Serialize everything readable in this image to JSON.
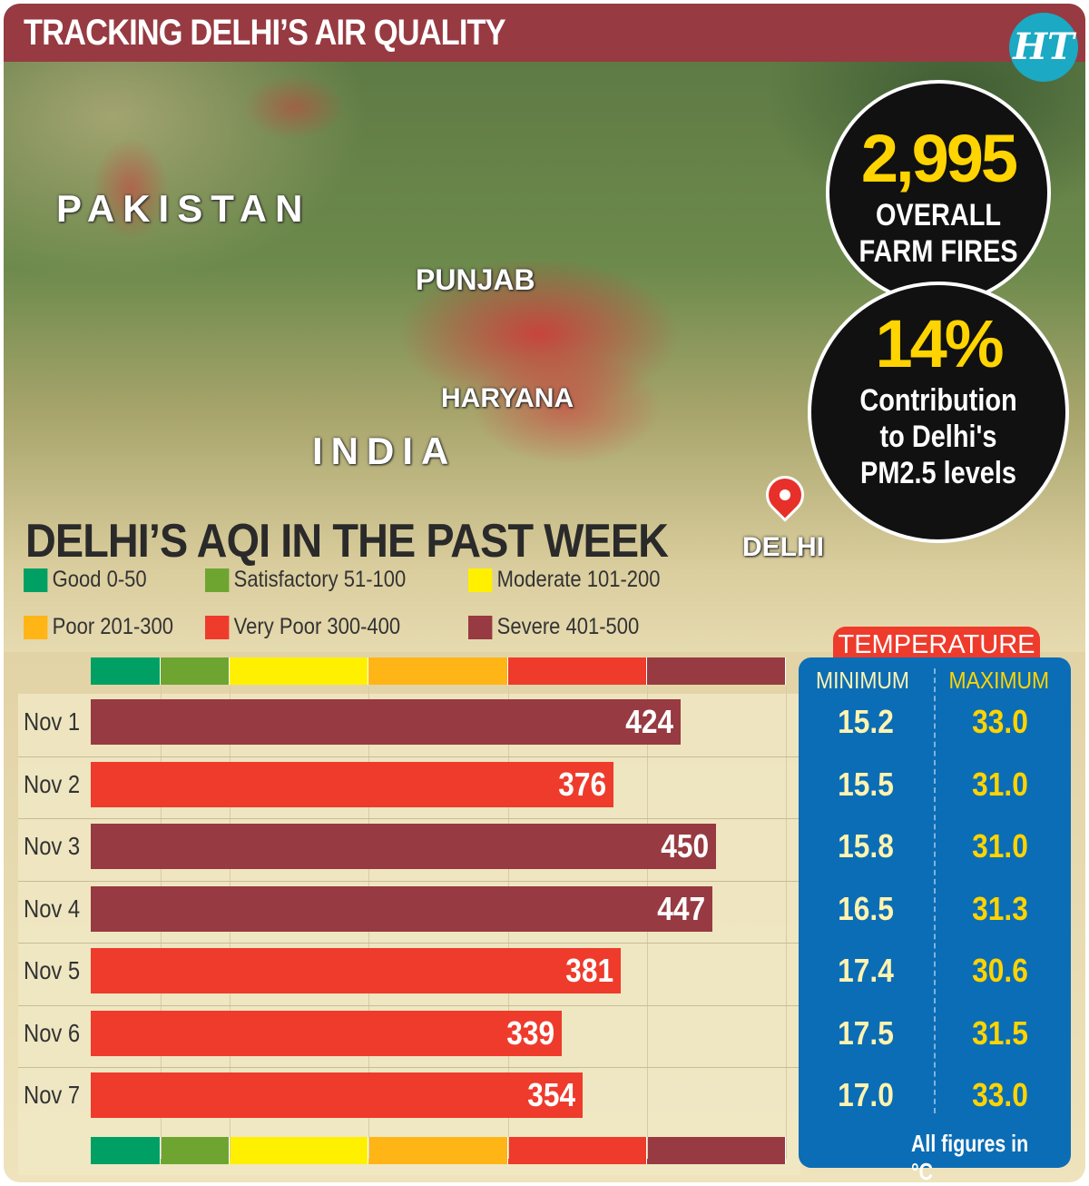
{
  "header": {
    "title": "TRACKING DELHI’S AIR QUALITY",
    "logo": "HT"
  },
  "map": {
    "labels": {
      "pakistan": "PAKISTAN",
      "punjab": "PUNJAB",
      "haryana": "HARYANA",
      "india": "INDIA",
      "delhi": "DELHI"
    }
  },
  "stats": {
    "fires_value": "2,995",
    "fires_label1": "OVERALL",
    "fires_label2": "FARM FIRES",
    "contrib_value": "14%",
    "contrib_label1": "Contribution",
    "contrib_label2": "to Delhi's",
    "contrib_label3": "PM2.5 levels"
  },
  "chart_data": {
    "type": "bar",
    "orientation": "horizontal",
    "title": "DELHI’S AQI IN THE PAST WEEK",
    "categories": [
      "Nov 1",
      "Nov 2",
      "Nov 3",
      "Nov 4",
      "Nov 5",
      "Nov 6",
      "Nov 7"
    ],
    "values": [
      424,
      376,
      450,
      447,
      381,
      339,
      354
    ],
    "xlim": [
      0,
      500
    ],
    "legend": [
      {
        "label": "Good 0-50",
        "color": "#00a064",
        "min": 0,
        "max": 50
      },
      {
        "label": "Satisfactory 51-100",
        "color": "#6ea531",
        "min": 50,
        "max": 100
      },
      {
        "label": "Moderate 101-200",
        "color": "#fff000",
        "min": 100,
        "max": 200
      },
      {
        "label": "Poor 201-300",
        "color": "#ffb515",
        "min": 200,
        "max": 300
      },
      {
        "label": "Very Poor 300-400",
        "color": "#ee3b2b",
        "min": 300,
        "max": 400
      },
      {
        "label": "Severe 401-500",
        "color": "#973a41",
        "min": 400,
        "max": 500
      }
    ]
  },
  "temperature": {
    "title": "TEMPERATURE",
    "min_label": "MINIMUM",
    "max_label": "MAXIMUM",
    "min": [
      "15.2",
      "15.5",
      "15.8",
      "16.5",
      "17.4",
      "17.5",
      "17.0"
    ],
    "max": [
      "33.0",
      "31.0",
      "31.0",
      "31.3",
      "30.6",
      "31.5",
      "33.0"
    ],
    "note": "All figures in °C"
  },
  "colors": {
    "title_bar": "#973a41",
    "temp_panel": "#0b6db5",
    "max_text": "#ffd400",
    "min_text": "#fff3b0"
  }
}
